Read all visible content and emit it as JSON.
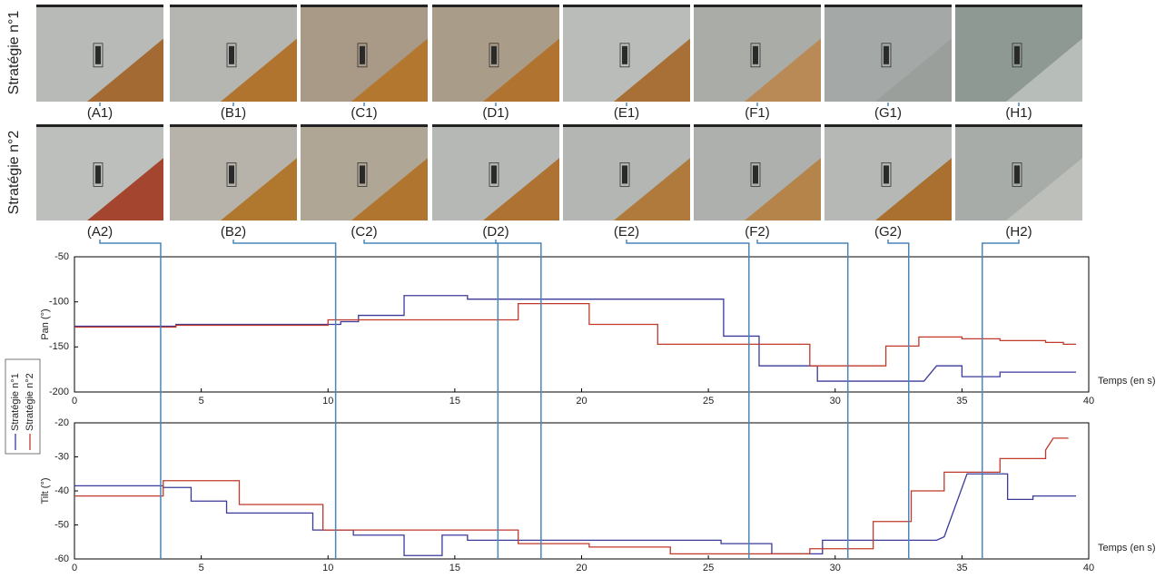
{
  "row_labels": [
    "Stratégie n°1",
    "Stratégie n°2"
  ],
  "frames": {
    "row1": [
      "(A1)",
      "(B1)",
      "(C1)",
      "(D1)",
      "(E1)",
      "(F1)",
      "(G1)",
      "(H1)"
    ],
    "row2": [
      "(A2)",
      "(B2)",
      "(C2)",
      "(D2)",
      "(E2)",
      "(F2)",
      "(G2)",
      "(H2)"
    ]
  },
  "marker_times": [
    3.4,
    10.3,
    16.7,
    18.4,
    26.6,
    30.5,
    32.9,
    35.8
  ],
  "chart_data": [
    {
      "type": "line",
      "ylabel": "Pan (°)",
      "xlabel": "Temps (en s)",
      "xlim": [
        0,
        40
      ],
      "xticks": [
        0,
        5,
        10,
        15,
        20,
        25,
        30,
        35,
        40
      ],
      "ylim": [
        -200,
        -50
      ],
      "yticks": [
        -200,
        -150,
        -100,
        -50
      ],
      "series": [
        {
          "name": "Stratégie n°1",
          "color": "#3a3a9a",
          "x": [
            0,
            4,
            4,
            10.5,
            10.5,
            11.2,
            11.2,
            13,
            13,
            15.5,
            15.5,
            25.6,
            25.6,
            27,
            27,
            29.3,
            29.3,
            33.5,
            34,
            35,
            35,
            36.5,
            36.5,
            39.5
          ],
          "values": [
            -127,
            -127,
            -125,
            -125,
            -122,
            -122,
            -115,
            -115,
            -93,
            -93,
            -97,
            -97,
            -138,
            -138,
            -171,
            -171,
            -188,
            -188,
            -171,
            -171,
            -183,
            -183,
            -178,
            -178
          ]
        },
        {
          "name": "Stratégie n°2",
          "color": "#c0392b",
          "x": [
            0,
            4,
            4,
            10,
            10,
            17.5,
            17.5,
            20.3,
            20.3,
            23,
            23,
            29,
            29,
            32,
            32,
            33.3,
            33.3,
            35,
            35,
            36.5,
            36.5,
            38.3,
            38.3,
            39,
            39,
            39.5
          ],
          "values": [
            -128,
            -128,
            -126,
            -126,
            -120,
            -120,
            -102,
            -102,
            -125,
            -125,
            -147,
            -147,
            -171,
            -171,
            -149,
            -149,
            -139,
            -139,
            -141,
            -141,
            -143,
            -143,
            -145,
            -145,
            -147,
            -147
          ]
        }
      ]
    },
    {
      "type": "line",
      "ylabel": "Tilt (°)",
      "xlabel": "Temps (en s)",
      "xlim": [
        0,
        40
      ],
      "xticks": [
        0,
        5,
        10,
        15,
        20,
        25,
        30,
        35,
        40
      ],
      "ylim": [
        -60,
        -20
      ],
      "yticks": [
        -60,
        -50,
        -40,
        -30,
        -20
      ],
      "series": [
        {
          "color": "#3a3a9a",
          "x": [
            0,
            3.5,
            3.5,
            4.6,
            4.6,
            6,
            6,
            9.4,
            9.4,
            11,
            11,
            13,
            13,
            14.5,
            14.5,
            15.5,
            15.5,
            25.5,
            25.5,
            27.5,
            27.5,
            29.5,
            29.5,
            34,
            34.3,
            35.2,
            36.8,
            36.8,
            37.8,
            37.8,
            39.5
          ],
          "values": [
            -38.5,
            -38.5,
            -39,
            -39,
            -43,
            -43,
            -46.5,
            -46.5,
            -51.5,
            -51.5,
            -53,
            -53,
            -59,
            -59,
            -53,
            -53,
            -54.5,
            -54.5,
            -55.5,
            -55.5,
            -58.5,
            -58.5,
            -54.5,
            -54.5,
            -53.5,
            -35,
            -35,
            -42.5,
            -42.5,
            -41.5,
            -41.5
          ]
        },
        {
          "color": "#c0392b",
          "x": [
            0,
            3.5,
            3.5,
            6.5,
            6.5,
            9.8,
            9.8,
            17.5,
            17.5,
            20.3,
            20.3,
            23.5,
            23.5,
            29,
            29,
            31.5,
            31.5,
            33,
            33,
            34.3,
            34.3,
            36.5,
            36.5,
            38.3,
            38.3,
            38.6,
            39.2
          ],
          "values": [
            -41.5,
            -41.5,
            -37,
            -37,
            -44,
            -44,
            -51.5,
            -51.5,
            -55.5,
            -55.5,
            -56.5,
            -56.5,
            -58.5,
            -58.5,
            -57,
            -57,
            -49,
            -49,
            -40,
            -40,
            -34.5,
            -34.5,
            -30.5,
            -30.5,
            -28,
            -24.5,
            -24.5
          ]
        }
      ]
    }
  ]
}
